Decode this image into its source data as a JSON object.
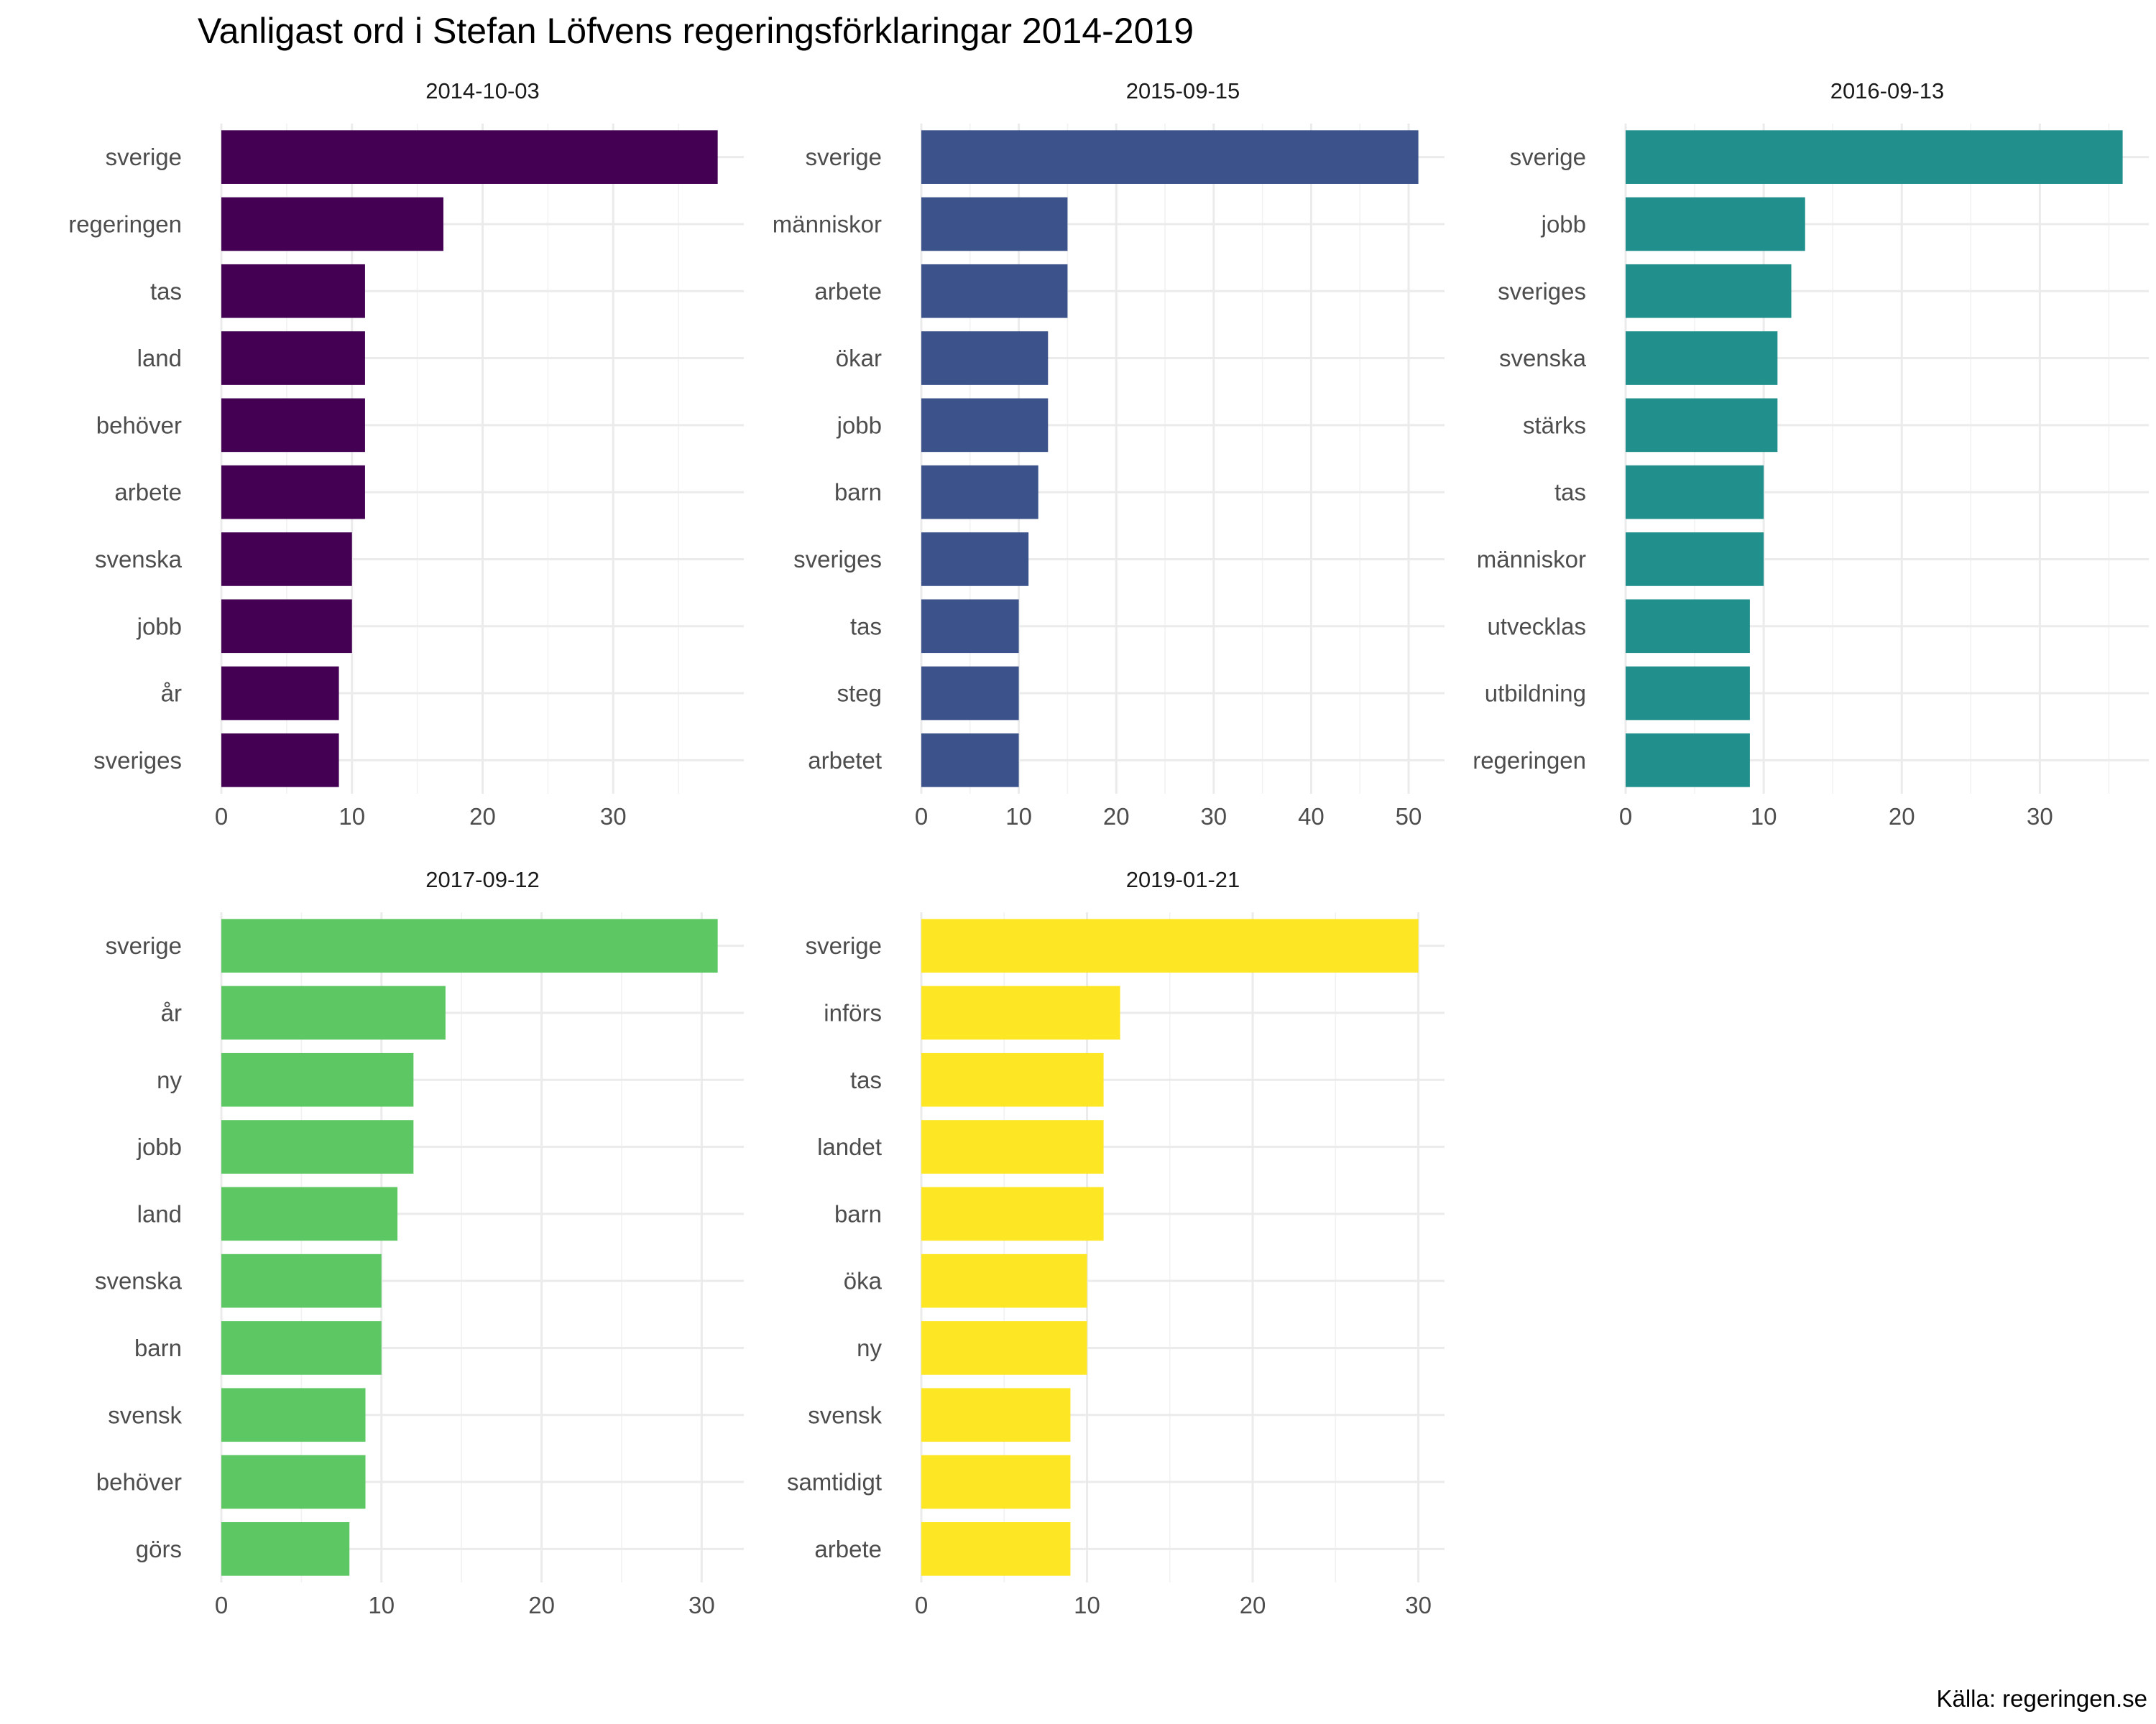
{
  "chart_data": {
    "type": "bar",
    "title": "Vanligast ord i Stefan Löfvens regeringsförklaringar 2014-2019",
    "caption": "Källa: regeringen.se",
    "orientation": "horizontal",
    "grid": true,
    "legend": "none",
    "panels": [
      {
        "title": "2014-10-03",
        "color": "#440154",
        "xlim": [
          0,
          38
        ],
        "ticks": [
          0,
          10,
          20,
          30
        ],
        "categories": [
          "sverige",
          "regeringen",
          "tas",
          "land",
          "behöver",
          "arbete",
          "svenska",
          "jobb",
          "år",
          "sveriges"
        ],
        "values": [
          38,
          17,
          11,
          11,
          11,
          11,
          10,
          10,
          9,
          9
        ]
      },
      {
        "title": "2015-09-15",
        "color": "#3B528B",
        "xlim": [
          0,
          51
        ],
        "ticks": [
          0,
          10,
          20,
          30,
          40,
          50
        ],
        "categories": [
          "sverige",
          "människor",
          "arbete",
          "ökar",
          "jobb",
          "barn",
          "sveriges",
          "tas",
          "steg",
          "arbetet"
        ],
        "values": [
          51,
          15,
          15,
          13,
          13,
          12,
          11,
          10,
          10,
          10
        ]
      },
      {
        "title": "2016-09-13",
        "color": "#21908C",
        "xlim": [
          0,
          36
        ],
        "ticks": [
          0,
          10,
          20,
          30
        ],
        "categories": [
          "sverige",
          "jobb",
          "sveriges",
          "svenska",
          "stärks",
          "tas",
          "människor",
          "utvecklas",
          "utbildning",
          "regeringen"
        ],
        "values": [
          36,
          13,
          12,
          11,
          11,
          10,
          10,
          9,
          9,
          9
        ]
      },
      {
        "title": "2017-09-12",
        "color": "#5DC863",
        "xlim": [
          0,
          31
        ],
        "ticks": [
          0,
          10,
          20,
          30
        ],
        "categories": [
          "sverige",
          "år",
          "ny",
          "jobb",
          "land",
          "svenska",
          "barn",
          "svensk",
          "behöver",
          "görs"
        ],
        "values": [
          31,
          14,
          12,
          12,
          11,
          10,
          10,
          9,
          9,
          8
        ]
      },
      {
        "title": "2019-01-21",
        "color": "#FDE725",
        "xlim": [
          0,
          30
        ],
        "ticks": [
          0,
          10,
          20,
          30
        ],
        "categories": [
          "sverige",
          "införs",
          "tas",
          "landet",
          "barn",
          "öka",
          "ny",
          "svensk",
          "samtidigt",
          "arbete"
        ],
        "values": [
          30,
          12,
          11,
          11,
          11,
          10,
          10,
          9,
          9,
          9
        ]
      }
    ]
  }
}
